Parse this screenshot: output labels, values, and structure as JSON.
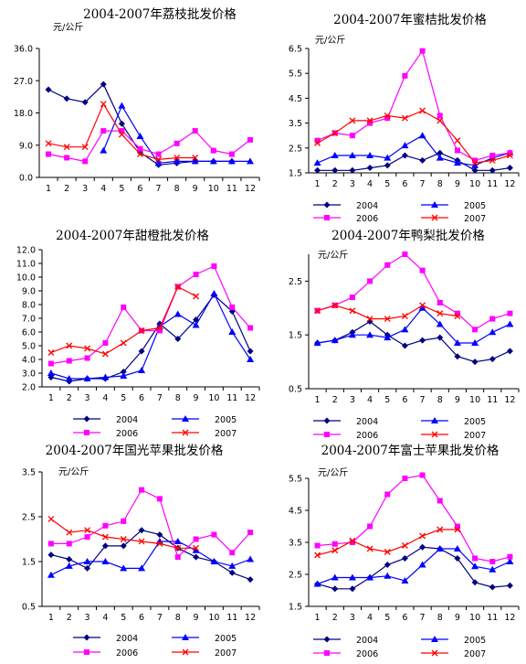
{
  "chart_data": [
    {
      "type": "line",
      "title": "2004-2007年荔枝批发价格",
      "unit": "元/公斤",
      "categories": [
        "1",
        "2",
        "3",
        "4",
        "5",
        "6",
        "7",
        "8",
        "9",
        "10",
        "11",
        "12"
      ],
      "ylim": [
        0,
        36
      ],
      "yticks": [
        "0.0",
        "9.0",
        "18.0",
        "27.0",
        "36.0"
      ],
      "series": [
        {
          "name": "2004",
          "values": [
            24.5,
            22,
            21,
            26,
            15,
            7,
            3.5,
            4,
            4.5,
            4.5,
            4.5,
            null
          ]
        },
        {
          "name": "2005",
          "values": [
            null,
            null,
            null,
            7.5,
            20,
            11.5,
            4,
            4.5,
            4.5,
            4.5,
            4.5,
            4.5
          ]
        },
        {
          "name": "2006",
          "values": [
            6.5,
            5.5,
            4.5,
            13,
            13,
            8,
            6.5,
            9.5,
            13,
            7.5,
            6.5,
            10.5
          ]
        },
        {
          "name": "2007",
          "values": [
            9.5,
            8.5,
            8.5,
            20.5,
            12,
            6.5,
            5,
            5.5,
            5.5,
            null,
            null,
            null
          ]
        }
      ]
    },
    {
      "type": "line",
      "title": "2004-2007年蜜桔批发价格",
      "unit": "元/公斤",
      "categories": [
        "1",
        "2",
        "3",
        "4",
        "5",
        "6",
        "7",
        "8",
        "9",
        "10",
        "11",
        "12"
      ],
      "ylim": [
        1.5,
        6.5
      ],
      "yticks": [
        "1.5",
        "2.5",
        "3.5",
        "4.5",
        "5.5",
        "6.5"
      ],
      "series": [
        {
          "name": "2004",
          "values": [
            1.6,
            1.6,
            1.6,
            1.7,
            1.8,
            2.2,
            2.0,
            2.3,
            2.0,
            1.6,
            1.6,
            1.7
          ]
        },
        {
          "name": "2005",
          "values": [
            1.9,
            2.2,
            2.2,
            2.2,
            2.1,
            2.6,
            3.0,
            2.1,
            1.9,
            1.8,
            2.1,
            2.3
          ]
        },
        {
          "name": "2006",
          "values": [
            2.8,
            3.1,
            3.0,
            3.5,
            3.7,
            5.4,
            6.4,
            3.8,
            2.4,
            2.0,
            2.2,
            2.3
          ]
        },
        {
          "name": "2007",
          "values": [
            2.7,
            3.1,
            3.6,
            3.6,
            3.8,
            3.7,
            4.0,
            3.6,
            2.8,
            1.9,
            2.0,
            2.2
          ]
        }
      ]
    },
    {
      "type": "line",
      "title": "2004-2007年甜橙批发价格",
      "unit": "",
      "categories": [
        "1",
        "2",
        "3",
        "4",
        "5",
        "6",
        "7",
        "8",
        "9",
        "10",
        "11",
        "12"
      ],
      "ylim": [
        2,
        12
      ],
      "yticks": [
        "2.0",
        "3.0",
        "4.0",
        "5.0",
        "6.0",
        "7.0",
        "8.0",
        "9.0",
        "10.0",
        "11.0",
        "12.0"
      ],
      "series": [
        {
          "name": "2004",
          "values": [
            2.7,
            2.4,
            2.6,
            2.6,
            3.1,
            4.6,
            6.6,
            5.5,
            6.9,
            8.7,
            7.5,
            4.6
          ]
        },
        {
          "name": "2005",
          "values": [
            3.0,
            2.6,
            2.6,
            2.7,
            2.8,
            3.2,
            6.4,
            7.3,
            6.5,
            8.8,
            6.0,
            4.0
          ]
        },
        {
          "name": "2006",
          "values": [
            3.7,
            3.9,
            4.1,
            5.2,
            7.8,
            6.1,
            6.1,
            9.3,
            10.2,
            10.8,
            7.8,
            6.3
          ]
        },
        {
          "name": "2007",
          "values": [
            4.5,
            5.0,
            4.8,
            4.4,
            5.2,
            6.1,
            6.3,
            9.3,
            8.6,
            null,
            null,
            null
          ]
        }
      ]
    },
    {
      "type": "line",
      "title": "2004-2007年鸭梨批发价格",
      "unit": "元/公斤",
      "categories": [
        "1",
        "2",
        "3",
        "4",
        "5",
        "6",
        "7",
        "8",
        "9",
        "10",
        "11",
        "12"
      ],
      "ylim": [
        0.5,
        3.0
      ],
      "yticks": [
        "0.5",
        "1.5",
        "2.5"
      ],
      "series": [
        {
          "name": "2004",
          "values": [
            1.35,
            1.4,
            1.55,
            1.75,
            1.5,
            1.3,
            1.4,
            1.45,
            1.1,
            1.0,
            1.05,
            1.2
          ]
        },
        {
          "name": "2005",
          "values": [
            1.35,
            1.4,
            1.5,
            1.5,
            1.45,
            1.6,
            2.0,
            1.7,
            1.35,
            1.35,
            1.55,
            1.7
          ]
        },
        {
          "name": "2006",
          "values": [
            1.95,
            2.05,
            2.2,
            2.5,
            2.8,
            3.0,
            2.7,
            2.1,
            1.9,
            1.6,
            1.8,
            1.9
          ]
        },
        {
          "name": "2007",
          "values": [
            1.95,
            2.05,
            1.95,
            1.8,
            1.8,
            1.85,
            2.05,
            1.9,
            1.85,
            null,
            null,
            null
          ]
        }
      ]
    },
    {
      "type": "line",
      "title": "2004-2007年国光苹果批发价格",
      "unit": "元/公斤",
      "categories": [
        "1",
        "2",
        "3",
        "4",
        "5",
        "6",
        "7",
        "8",
        "9",
        "10",
        "11",
        "12"
      ],
      "ylim": [
        0.5,
        3.5
      ],
      "yticks": [
        "0.5",
        "1.5",
        "2.5",
        "3.5"
      ],
      "series": [
        {
          "name": "2004",
          "values": [
            1.65,
            1.55,
            1.35,
            1.85,
            1.85,
            2.2,
            2.1,
            1.8,
            1.6,
            1.5,
            1.25,
            1.1
          ]
        },
        {
          "name": "2005",
          "values": [
            1.2,
            1.4,
            1.5,
            1.5,
            1.35,
            1.35,
            1.95,
            1.95,
            1.75,
            1.5,
            1.4,
            1.55
          ]
        },
        {
          "name": "2006",
          "values": [
            1.9,
            1.9,
            2.05,
            2.3,
            2.4,
            3.1,
            2.9,
            1.6,
            2.0,
            2.1,
            1.7,
            2.15
          ]
        },
        {
          "name": "2007",
          "values": [
            2.45,
            2.15,
            2.2,
            2.05,
            2.0,
            1.95,
            1.9,
            1.8,
            1.8,
            null,
            null,
            null
          ]
        }
      ]
    },
    {
      "type": "line",
      "title": "2004-2007年富士苹果批发价格",
      "unit": "元/公斤",
      "categories": [
        "1",
        "2",
        "3",
        "4",
        "5",
        "6",
        "7",
        "8",
        "9",
        "10",
        "11",
        "12"
      ],
      "ylim": [
        1.5,
        5.5
      ],
      "yticks": [
        "1.5",
        "2.5",
        "3.5",
        "4.5",
        "5.5"
      ],
      "series": [
        {
          "name": "2004",
          "values": [
            2.2,
            2.05,
            2.05,
            2.4,
            2.8,
            3.0,
            3.35,
            3.3,
            3.0,
            2.25,
            2.1,
            2.15
          ]
        },
        {
          "name": "2005",
          "values": [
            2.2,
            2.4,
            2.4,
            2.4,
            2.45,
            2.3,
            2.8,
            3.3,
            3.3,
            2.75,
            2.65,
            2.9
          ]
        },
        {
          "name": "2006",
          "values": [
            3.4,
            3.45,
            3.5,
            4.0,
            5.0,
            5.5,
            5.6,
            4.8,
            4.0,
            3.0,
            2.9,
            3.05
          ]
        },
        {
          "name": "2007",
          "values": [
            3.1,
            3.25,
            3.55,
            3.3,
            3.2,
            3.4,
            3.7,
            3.9,
            3.9,
            null,
            null,
            null
          ]
        }
      ]
    }
  ],
  "legend": [
    {
      "label": "2004",
      "color": "#000080",
      "marker": "diamond"
    },
    {
      "label": "2005",
      "color": "#0000FF",
      "marker": "triangle"
    },
    {
      "label": "2006",
      "color": "#FF00FF",
      "marker": "square"
    },
    {
      "label": "2007",
      "color": "#FF0000",
      "marker": "x"
    }
  ]
}
